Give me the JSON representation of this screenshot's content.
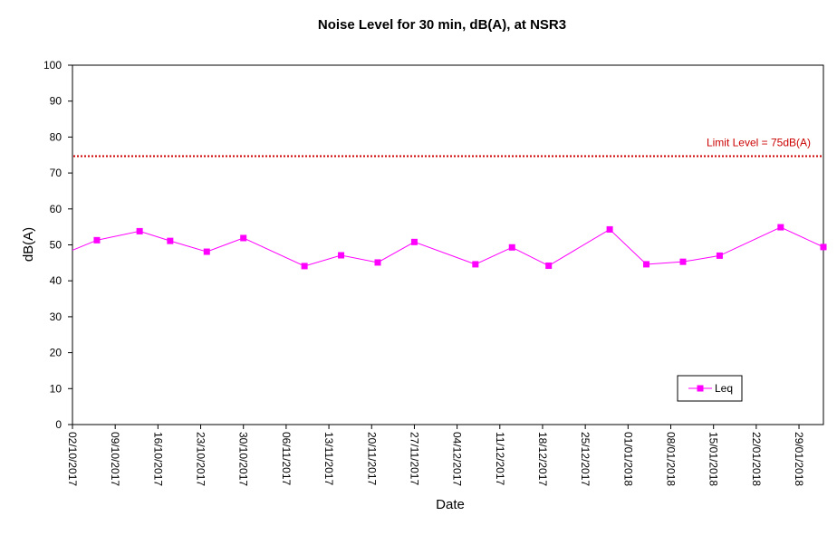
{
  "chart_data": {
    "type": "line",
    "title": "Noise Level for 30 min, dB(A), at NSR3",
    "xlabel": "Date",
    "ylabel": "dB(A)",
    "ylim": [
      0,
      100
    ],
    "yticks": [
      "0",
      "10",
      "20",
      "30",
      "40",
      "50",
      "60",
      "70",
      "80",
      "90",
      "100"
    ],
    "xlim": [
      "2017-10-02",
      "2018-02-02"
    ],
    "xticks": [
      {
        "date": "2017-10-02",
        "label": "02/10/2017"
      },
      {
        "date": "2017-10-09",
        "label": "09/10/2017"
      },
      {
        "date": "2017-10-16",
        "label": "16/10/2017"
      },
      {
        "date": "2017-10-23",
        "label": "23/10/2017"
      },
      {
        "date": "2017-10-30",
        "label": "30/10/2017"
      },
      {
        "date": "2017-11-06",
        "label": "06/11/2017"
      },
      {
        "date": "2017-11-13",
        "label": "13/11/2017"
      },
      {
        "date": "2017-11-20",
        "label": "20/11/2017"
      },
      {
        "date": "2017-11-27",
        "label": "27/11/2017"
      },
      {
        "date": "2017-12-04",
        "label": "04/12/2017"
      },
      {
        "date": "2017-12-11",
        "label": "11/12/2017"
      },
      {
        "date": "2017-12-18",
        "label": "18/12/2017"
      },
      {
        "date": "2017-12-25",
        "label": "25/12/2017"
      },
      {
        "date": "2018-01-01",
        "label": "01/01/2018"
      },
      {
        "date": "2018-01-08",
        "label": "08/01/2018"
      },
      {
        "date": "2018-01-15",
        "label": "15/01/2018"
      },
      {
        "date": "2018-01-22",
        "label": "22/01/2018"
      },
      {
        "date": "2018-01-29",
        "label": "29/01/2018"
      }
    ],
    "series": [
      {
        "name": "Leq",
        "color": "#ff00ff",
        "marker": "square",
        "x": [
          "2017-10-02",
          "2017-10-06",
          "2017-10-13",
          "2017-10-18",
          "2017-10-24",
          "2017-10-30",
          "2017-11-09",
          "2017-11-15",
          "2017-11-21",
          "2017-11-27",
          "2017-12-07",
          "2017-12-13",
          "2017-12-19",
          "2017-12-29",
          "2018-01-04",
          "2018-01-10",
          "2018-01-16",
          "2018-01-26",
          "2018-02-02"
        ],
        "y": [
          48.5,
          51.3,
          53.8,
          51.1,
          48.1,
          51.9,
          44.1,
          47.1,
          45.1,
          50.8,
          44.6,
          49.3,
          44.2,
          54.3,
          44.6,
          45.3,
          47.0,
          54.9,
          49.4
        ],
        "show_first_marker": false
      }
    ],
    "limit_line": {
      "value": 74.7,
      "label": "Limit Level = 75dB(A)",
      "color": "#cc0000",
      "style": "dotted"
    },
    "legend": {
      "position": "bottom-right",
      "entries": [
        "Leq"
      ]
    },
    "grid": false
  }
}
